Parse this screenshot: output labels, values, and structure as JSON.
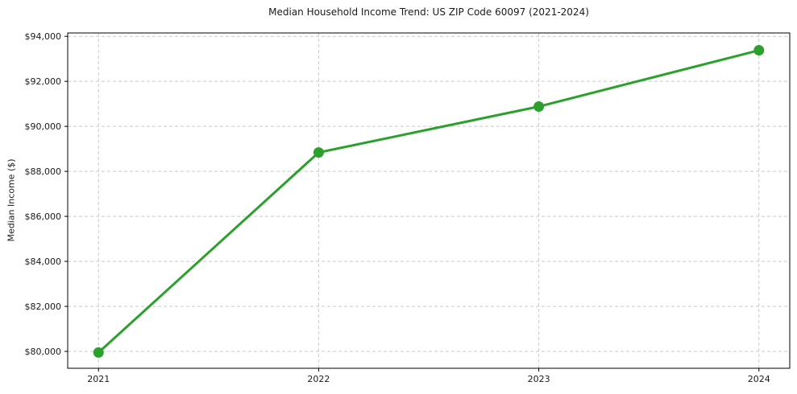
{
  "chart_data": {
    "type": "line",
    "title": "Median Household Income Trend: US ZIP Code 60097 (2021-2024)",
    "xlabel": "",
    "ylabel": "Median Income ($)",
    "x": [
      2021,
      2022,
      2023,
      2024
    ],
    "xtick_labels": [
      "2021",
      "2022",
      "2023",
      "2024"
    ],
    "series": [
      {
        "name": "Median Household Income",
        "values": [
          79950,
          88840,
          90880,
          93380
        ],
        "color": "#2ca02c",
        "marker": "circle",
        "line_width": 3,
        "marker_radius": 6.5
      }
    ],
    "yticks": [
      80000,
      82000,
      84000,
      86000,
      88000,
      90000,
      92000,
      94000
    ],
    "ytick_labels": [
      "$80,000",
      "$82,000",
      "$84,000",
      "$86,000",
      "$88,000",
      "$90,000",
      "$92,000",
      "$94,000"
    ],
    "xlim": [
      2020.86,
      2024.14
    ],
    "ylim": [
      79250,
      94150
    ],
    "grid": true,
    "grid_color": "#c9c9c9",
    "grid_style": "dashed",
    "axis_color": "#000000",
    "text_color": "#1a1a1a",
    "background": "#ffffff",
    "legend": "none"
  }
}
